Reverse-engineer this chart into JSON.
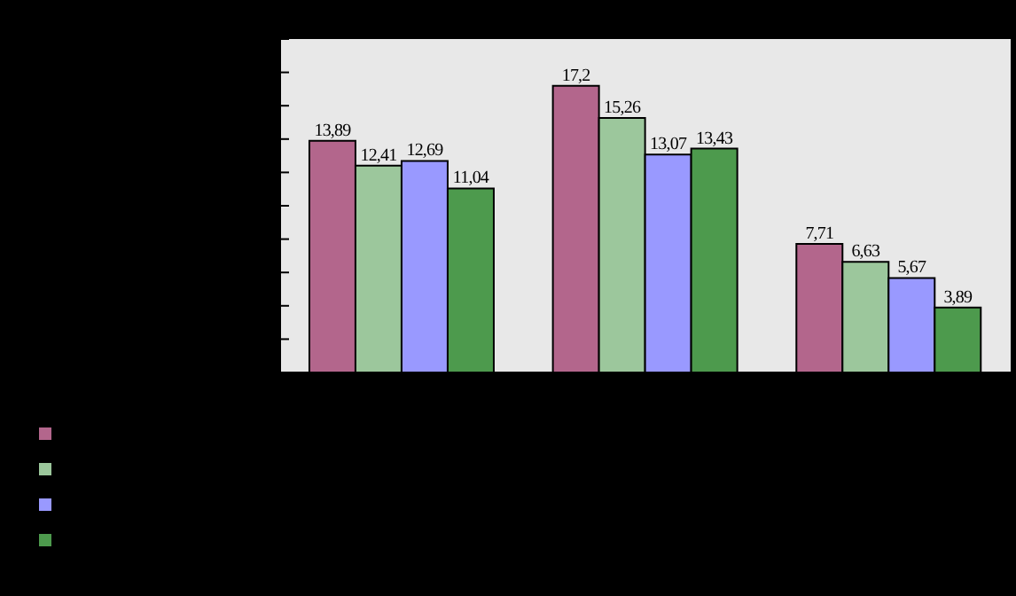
{
  "chart_data": {
    "type": "bar",
    "categories": [
      null,
      null,
      null
    ],
    "series": [
      {
        "color": "#b3668c",
        "values": [
          13.89,
          17.2,
          7.71
        ],
        "value_labels": [
          "13,89",
          "17,2",
          "7,71"
        ]
      },
      {
        "color": "#9cc79c",
        "values": [
          12.41,
          15.26,
          6.63
        ],
        "value_labels": [
          "12,41",
          "15,26",
          "6,63"
        ]
      },
      {
        "color": "#9999ff",
        "values": [
          12.69,
          13.07,
          5.67
        ],
        "value_labels": [
          "12,69",
          "13,07",
          "5,67"
        ]
      },
      {
        "color": "#4d9a4d",
        "values": [
          11.04,
          13.43,
          3.89
        ],
        "value_labels": [
          "11,04",
          "13,43",
          "3,89"
        ]
      }
    ],
    "ylim": [
      0,
      20
    ],
    "yticks": [
      {
        "value": 0,
        "label": null
      },
      {
        "value": 2,
        "label": null
      },
      {
        "value": 4,
        "label": null
      },
      {
        "value": 6,
        "label": null
      },
      {
        "value": 8,
        "label": null
      },
      {
        "value": 10,
        "label": null
      },
      {
        "value": 12,
        "label": null
      },
      {
        "value": 14,
        "label": null
      },
      {
        "value": 16,
        "label": null
      },
      {
        "value": 18,
        "label": null
      },
      {
        "value": 20,
        "label": null
      }
    ]
  }
}
